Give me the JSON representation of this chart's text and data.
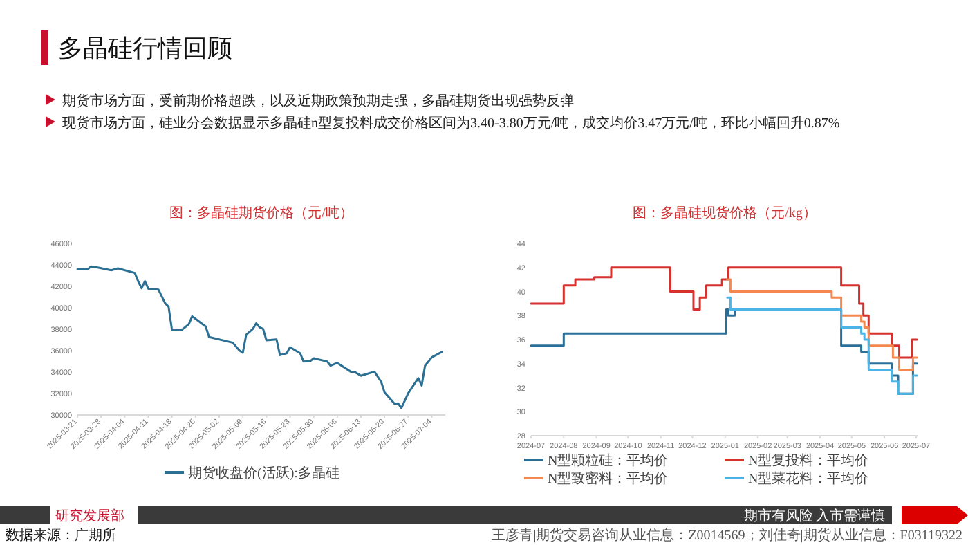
{
  "chart_data": [
    {
      "type": "other",
      "title": "多晶硅行情回顾",
      "annotations": [
        "期货市场方面，受前期价格超跌，以及近期政策预期走强，多晶硅期货出现强势反弹",
        "现货市场方面，硅业分会数据显示多晶硅n型复投料成交价格区间为3.40-3.80万元/吨，成交均价3.47万元/吨，环比小幅回升0.87%",
        "研究发展部",
        "期市有风险",
        "入市需谨慎",
        "数据来源：广期所",
        "王彦青|期货交易咨询从业信息：Z0014569；刘佳奇|期货从业信息：F03119322"
      ]
    },
    {
      "type": "line",
      "title": "图：多晶硅期货价格（元/吨）",
      "legend": "bottom",
      "grid": false,
      "xlim": [
        "2025-03-21",
        "2025-07-08"
      ],
      "xticks": [
        "2025-03-21",
        "2025-03-28",
        "2025-04-04",
        "2025-04-11",
        "2025-04-18",
        "2025-04-25",
        "2025-05-02",
        "2025-05-09",
        "2025-05-16",
        "2025-05-23",
        "2025-05-30",
        "2025-06-06",
        "2025-06-13",
        "2025-06-20",
        "2025-06-27",
        "2025-07-04"
      ],
      "ylim": [
        30000,
        46000
      ],
      "yticks": [
        30000,
        32000,
        34000,
        36000,
        38000,
        40000,
        42000,
        44000,
        46000
      ],
      "series": [
        {
          "name": "期货收盘价(活跃):多晶硅",
          "color": "#2b6f93",
          "x": [
            "2025-03-21",
            "2025-03-24",
            "2025-03-25",
            "2025-03-27",
            "2025-03-31",
            "2025-04-02",
            "2025-04-07",
            "2025-04-08",
            "2025-04-09",
            "2025-04-10",
            "2025-04-11",
            "2025-04-14",
            "2025-04-16",
            "2025-04-17",
            "2025-04-18",
            "2025-04-21",
            "2025-04-23",
            "2025-04-24",
            "2025-04-28",
            "2025-04-29",
            "2025-05-06",
            "2025-05-08",
            "2025-05-09",
            "2025-05-10",
            "2025-05-12",
            "2025-05-13",
            "2025-05-14",
            "2025-05-15",
            "2025-05-16",
            "2025-05-19",
            "2025-05-20",
            "2025-05-22",
            "2025-05-23",
            "2025-05-26",
            "2025-05-27",
            "2025-05-29",
            "2025-05-30",
            "2025-06-03",
            "2025-06-04",
            "2025-06-06",
            "2025-06-10",
            "2025-06-11",
            "2025-06-13",
            "2025-06-17",
            "2025-06-19",
            "2025-06-20",
            "2025-06-23",
            "2025-06-24",
            "2025-06-25",
            "2025-06-27",
            "2025-06-30",
            "2025-07-01",
            "2025-07-02",
            "2025-07-04",
            "2025-07-07"
          ],
          "values": [
            43590,
            43590,
            43850,
            43760,
            43500,
            43680,
            43250,
            42470,
            41830,
            42470,
            41780,
            41700,
            40410,
            40110,
            37960,
            37960,
            38470,
            39200,
            38260,
            37270,
            36750,
            36020,
            35810,
            37480,
            38040,
            38560,
            38170,
            38040,
            36970,
            37050,
            35590,
            35760,
            36320,
            35760,
            34990,
            35030,
            35290,
            34990,
            34600,
            34860,
            34040,
            34040,
            33660,
            34040,
            33100,
            32110,
            31030,
            31080,
            30650,
            32020,
            33440,
            32750,
            34600,
            35380,
            35890
          ]
        }
      ]
    },
    {
      "type": "step",
      "title": "图：多晶硅现货价格（元/kg）",
      "legend": "bottom",
      "grid": false,
      "xlim": [
        "2024-07-01",
        "2025-07-03"
      ],
      "xticks": [
        "2024-07",
        "2024-08",
        "2024-09",
        "2024-10",
        "2024-11",
        "2024-12",
        "2025-01",
        "2025-02",
        "2025-03",
        "2025-04",
        "2025-05",
        "2025-06",
        "2025-07"
      ],
      "ylim": [
        28,
        44
      ],
      "yticks": [
        28,
        30,
        32,
        34,
        36,
        38,
        40,
        42,
        44
      ],
      "series": [
        {
          "name": "N型颗粒硅：平均价",
          "color": "#2a6f97",
          "x": [
            "2024-07-01",
            "2024-08-01",
            "2025-01-02",
            "2025-01-04",
            "2025-01-10",
            "2025-04-21",
            "2025-05-10",
            "2025-05-17",
            "2025-06-08",
            "2025-06-14",
            "2025-06-28",
            "2025-07-02"
          ],
          "values": [
            35.5,
            36.5,
            38.5,
            38,
            38.5,
            35.5,
            35,
            34,
            33,
            31.5,
            34,
            34
          ]
        },
        {
          "name": "N型复投料：平均价",
          "color": "#d7312e",
          "x": [
            "2024-07-01",
            "2024-08-01",
            "2024-08-12",
            "2024-08-30",
            "2024-09-15",
            "2024-11-10",
            "2024-12-02",
            "2024-12-08",
            "2024-12-14",
            "2024-12-29",
            "2025-01-04",
            "2025-04-21",
            "2025-05-08",
            "2025-05-12",
            "2025-05-17",
            "2025-06-08",
            "2025-06-15",
            "2025-06-27",
            "2025-07-02"
          ],
          "values": [
            39,
            40.5,
            41,
            41.2,
            42,
            40,
            38.5,
            39.5,
            40.5,
            41,
            42,
            40.5,
            39,
            38,
            36.5,
            35.5,
            34.5,
            36,
            36
          ]
        },
        {
          "name": "N型致密料：平均价",
          "color": "#f4884f",
          "x": [
            "2025-01-03",
            "2025-01-06",
            "2025-04-12",
            "2025-04-21",
            "2025-05-10",
            "2025-05-13",
            "2025-05-17",
            "2025-06-09",
            "2025-06-15",
            "2025-06-28",
            "2025-07-02"
          ],
          "values": [
            41,
            40,
            39.5,
            38,
            37.5,
            37,
            35.5,
            34.5,
            33.5,
            34.5,
            34.5
          ]
        },
        {
          "name": "N型菜花料：平均价",
          "color": "#4bb4e6",
          "x": [
            "2025-01-03",
            "2025-01-06",
            "2025-04-21",
            "2025-05-10",
            "2025-05-13",
            "2025-05-17",
            "2025-06-08",
            "2025-06-14",
            "2025-06-28",
            "2025-07-02"
          ],
          "values": [
            39.5,
            38.5,
            37,
            36.5,
            36,
            33.5,
            32.5,
            31.5,
            33,
            33
          ]
        }
      ]
    }
  ]
}
